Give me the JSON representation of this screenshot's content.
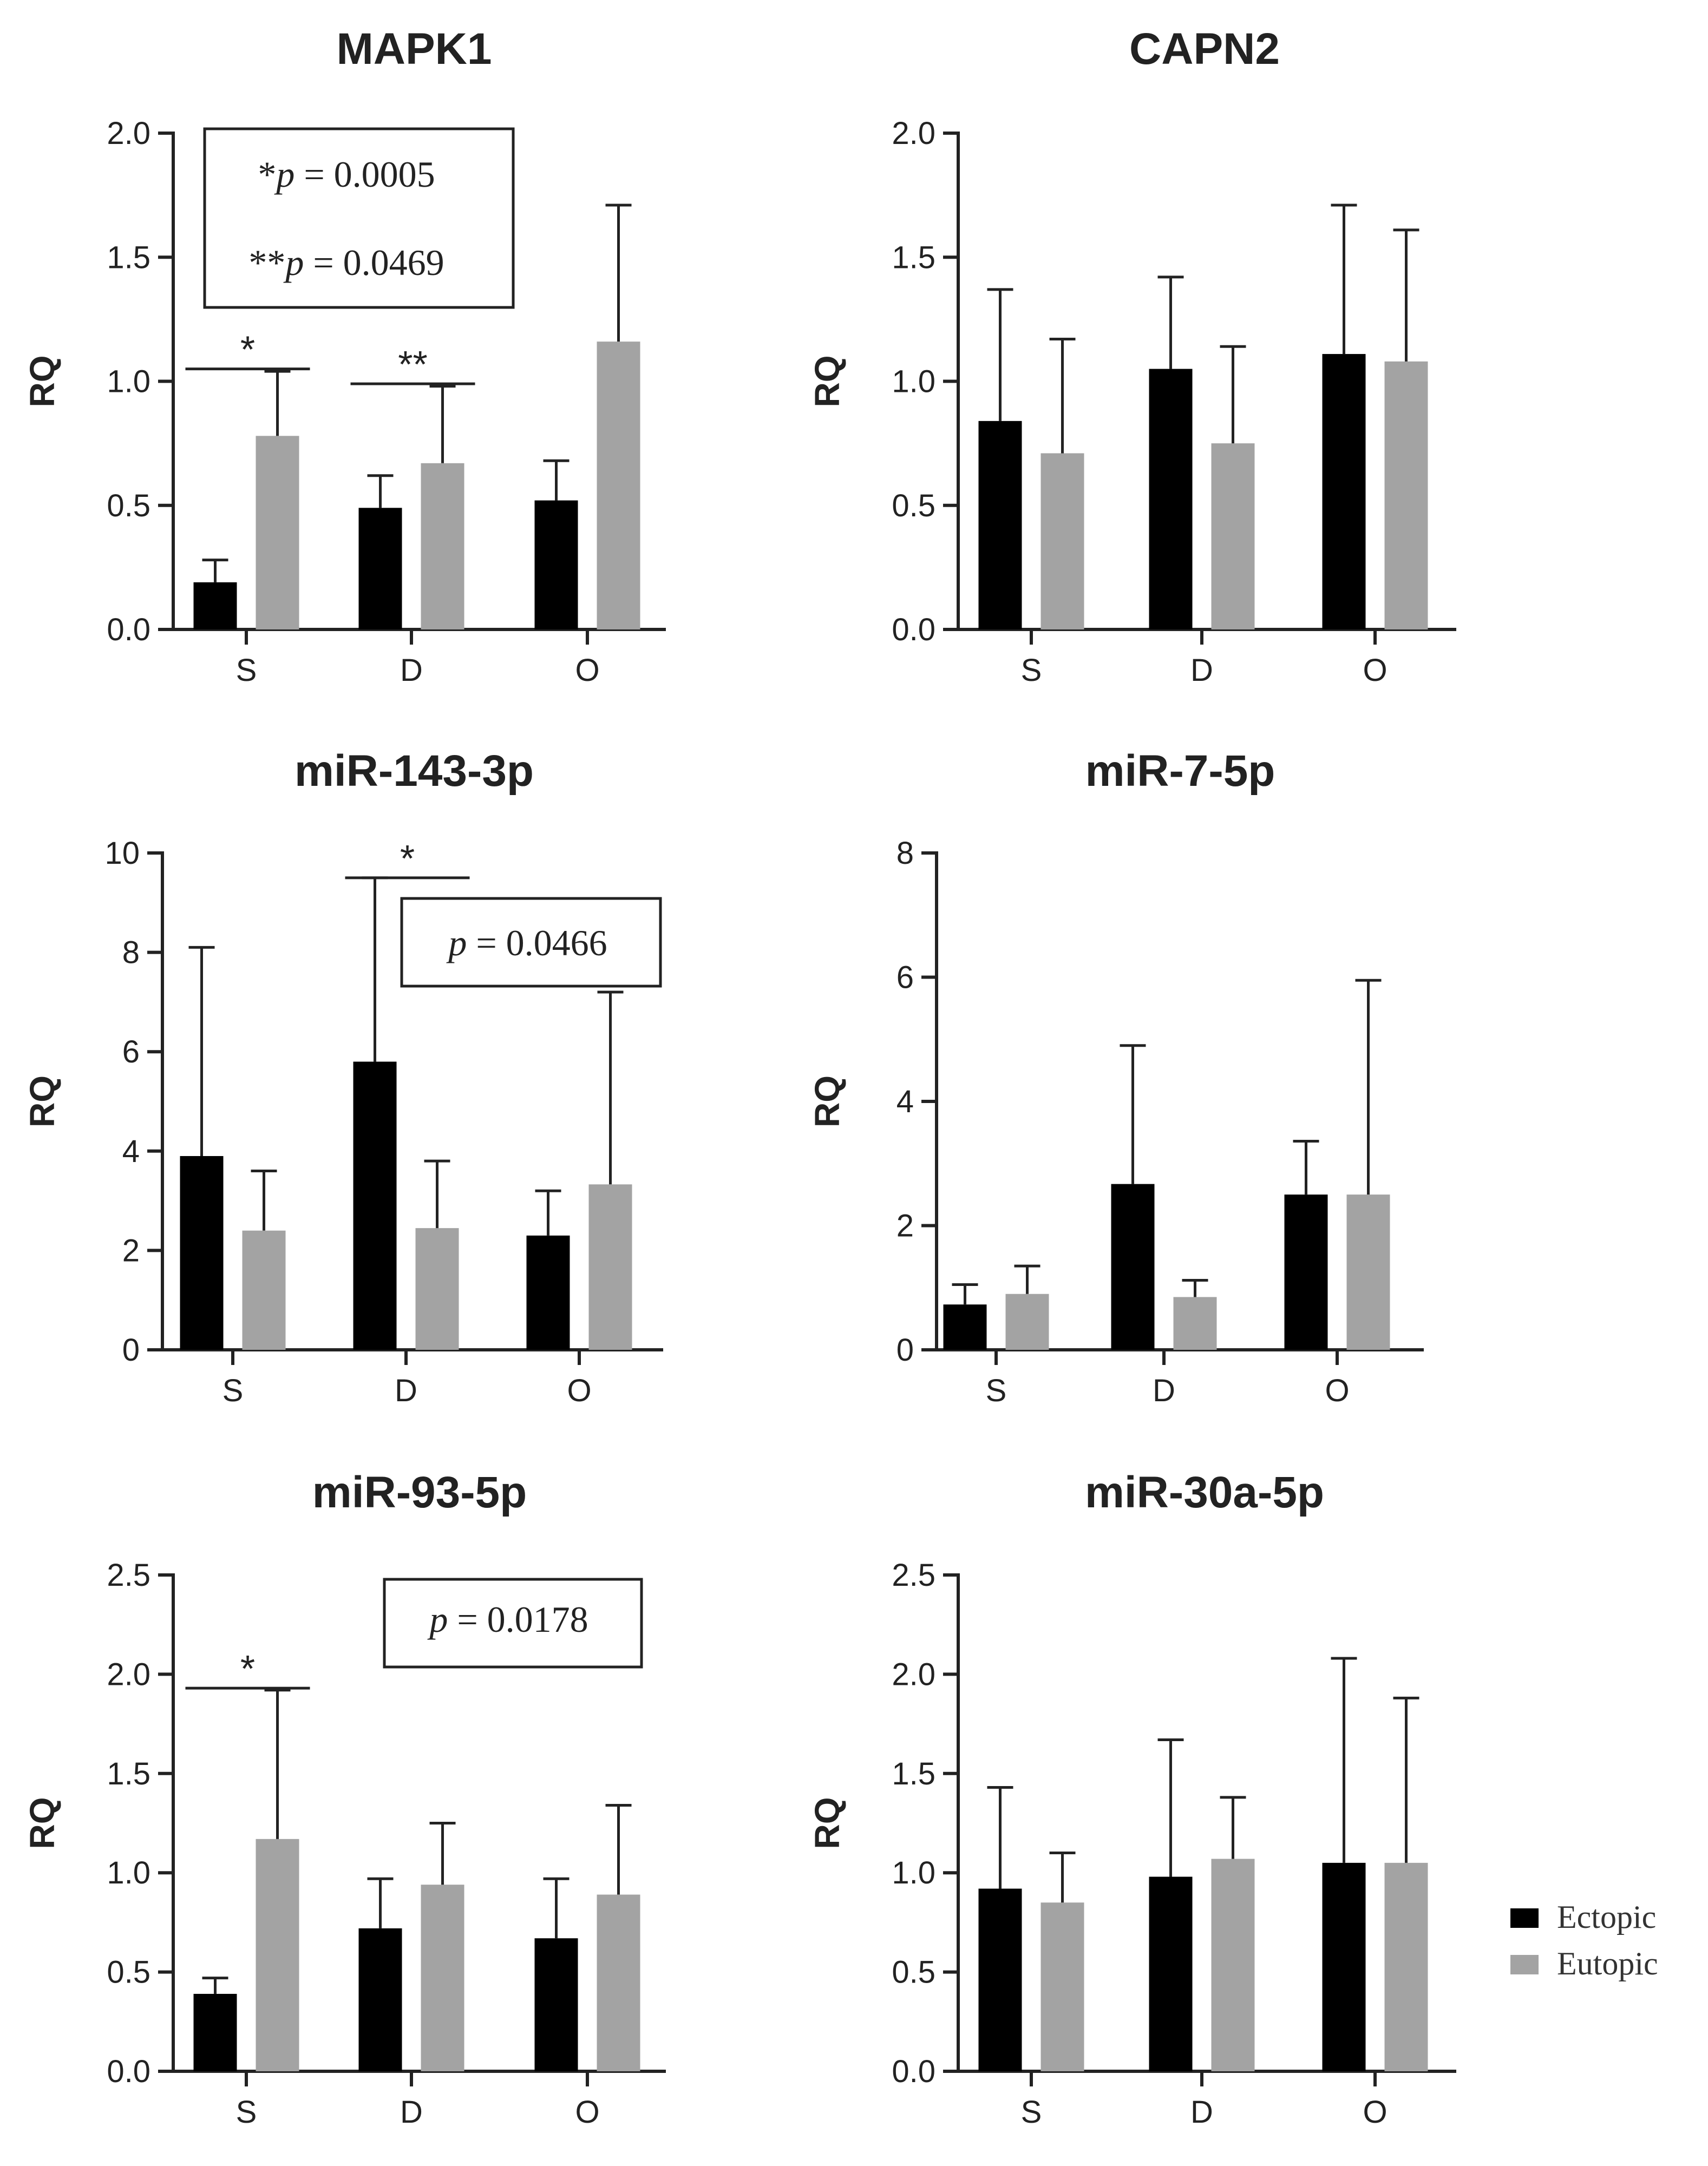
{
  "colors": {
    "ectopic": "#000000",
    "eutopic": "#a3a3a3",
    "axis": "#222222"
  },
  "legend": {
    "items": [
      {
        "label": "Ectopic",
        "color": "#000000"
      },
      {
        "label": "Eutopic",
        "color": "#a3a3a3"
      }
    ]
  },
  "chart_data": [
    {
      "type": "bar",
      "title": "MAPK1",
      "ylabel": "RQ",
      "categories": [
        "S",
        "D",
        "O"
      ],
      "ylim": [
        0,
        2
      ],
      "yticks": [
        "0.0",
        "0.5",
        "1.0",
        "1.5",
        "2.0"
      ],
      "series": [
        {
          "name": "Ectopic",
          "values": [
            0.19,
            0.49,
            0.52
          ],
          "errors": [
            0.09,
            0.13,
            0.16
          ]
        },
        {
          "name": "Eutopic",
          "values": [
            0.78,
            0.67,
            1.16
          ],
          "errors": [
            0.26,
            0.31,
            0.55
          ]
        }
      ],
      "significance": [
        {
          "category": "S",
          "label": "*",
          "y": 1.05
        },
        {
          "category": "D",
          "label": "**",
          "y": 0.99
        }
      ],
      "pbox": {
        "line1_prefix": "*",
        "line1_var": "p",
        "line1_value": "= 0.0005",
        "line2_prefix": "**",
        "line2_var": "p",
        "line2_value": "= 0.0469"
      }
    },
    {
      "type": "bar",
      "title": "CAPN2",
      "ylabel": "RQ",
      "categories": [
        "S",
        "D",
        "O"
      ],
      "ylim": [
        0,
        2
      ],
      "yticks": [
        "0.0",
        "0.5",
        "1.0",
        "1.5",
        "2.0"
      ],
      "series": [
        {
          "name": "Ectopic",
          "values": [
            0.84,
            1.05,
            1.11
          ],
          "errors": [
            0.53,
            0.37,
            0.6
          ]
        },
        {
          "name": "Eutopic",
          "values": [
            0.71,
            0.75,
            1.08
          ],
          "errors": [
            0.46,
            0.39,
            0.53
          ]
        }
      ],
      "significance": [],
      "pbox": null
    },
    {
      "type": "bar",
      "title": "miR-143-3p",
      "ylabel": "RQ",
      "categories": [
        "S",
        "D",
        "O"
      ],
      "ylim": [
        0,
        10
      ],
      "yticks": [
        "0",
        "2",
        "4",
        "6",
        "8",
        "10"
      ],
      "series": [
        {
          "name": "Ectopic",
          "values": [
            3.9,
            5.8,
            2.3
          ],
          "errors": [
            4.2,
            3.7,
            0.9
          ]
        },
        {
          "name": "Eutopic",
          "values": [
            2.4,
            2.45,
            3.33
          ],
          "errors": [
            1.2,
            1.35,
            3.87
          ]
        }
      ],
      "significance": [
        {
          "category": "D",
          "label": "*",
          "y": 9.5
        }
      ],
      "pbox": {
        "line1_prefix": "",
        "line1_var": "p",
        "line1_value": "= 0.0466"
      }
    },
    {
      "type": "bar",
      "title": "miR-7-5p",
      "ylabel": "RQ",
      "categories": [
        "S",
        "D",
        "O"
      ],
      "ylim": [
        0,
        8
      ],
      "yticks": [
        "0",
        "2",
        "4",
        "6",
        "8"
      ],
      "series": [
        {
          "name": "Ectopic",
          "values": [
            0.73,
            2.67,
            2.5
          ],
          "errors": [
            0.32,
            2.23,
            0.86
          ]
        },
        {
          "name": "Eutopic",
          "values": [
            0.9,
            0.85,
            2.5
          ],
          "errors": [
            0.45,
            0.27,
            3.45
          ]
        }
      ],
      "significance": [],
      "pbox": null
    },
    {
      "type": "bar",
      "title": "miR-93-5p",
      "ylabel": "RQ",
      "categories": [
        "S",
        "D",
        "O"
      ],
      "ylim": [
        0,
        2.5
      ],
      "yticks": [
        "0.0",
        "0.5",
        "1.0",
        "1.5",
        "2.0",
        "2.5"
      ],
      "series": [
        {
          "name": "Ectopic",
          "values": [
            0.39,
            0.72,
            0.67
          ],
          "errors": [
            0.08,
            0.25,
            0.3
          ]
        },
        {
          "name": "Eutopic",
          "values": [
            1.17,
            0.94,
            0.89
          ],
          "errors": [
            0.75,
            0.31,
            0.45
          ]
        }
      ],
      "significance": [
        {
          "category": "S",
          "label": "*",
          "y": 1.93
        }
      ],
      "pbox": {
        "line1_prefix": "",
        "line1_var": "p",
        "line1_value": "= 0.0178"
      }
    },
    {
      "type": "bar",
      "title": "miR-30a-5p",
      "ylabel": "RQ",
      "categories": [
        "S",
        "D",
        "O"
      ],
      "ylim": [
        0,
        2.5
      ],
      "yticks": [
        "0.0",
        "0.5",
        "1.0",
        "1.5",
        "2.0",
        "2.5"
      ],
      "series": [
        {
          "name": "Ectopic",
          "values": [
            0.92,
            0.98,
            1.05
          ],
          "errors": [
            0.51,
            0.69,
            1.03
          ]
        },
        {
          "name": "Eutopic",
          "values": [
            0.85,
            1.07,
            1.05
          ],
          "errors": [
            0.25,
            0.31,
            0.83
          ]
        }
      ],
      "significance": [],
      "pbox": null
    }
  ]
}
